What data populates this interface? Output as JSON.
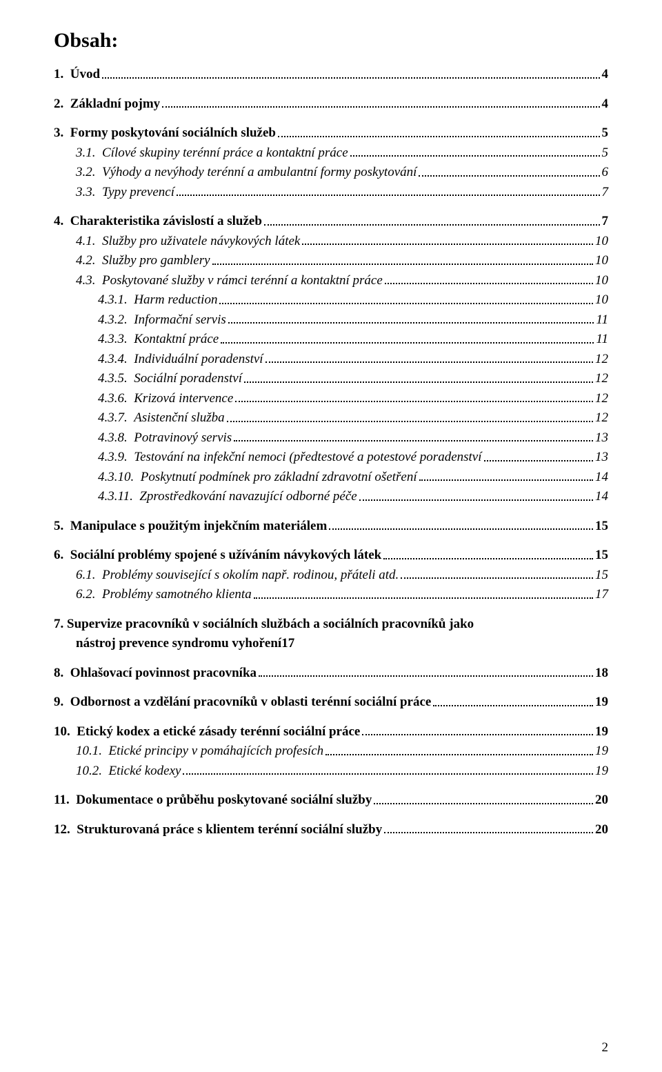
{
  "title": "Obsah:",
  "page_number": "2",
  "colors": {
    "text": "#000000",
    "background": "#ffffff"
  },
  "typography": {
    "font_family": "Times New Roman",
    "title_size_pt": 22,
    "body_size_pt": 14
  },
  "entries": [
    {
      "level": 1,
      "bold": true,
      "italic": false,
      "num": "1.",
      "label": "Úvod",
      "page": "4",
      "gap_before": false
    },
    {
      "level": 1,
      "bold": true,
      "italic": false,
      "num": "2.",
      "label": "Základní pojmy",
      "page": "4",
      "gap_before": true
    },
    {
      "level": 1,
      "bold": true,
      "italic": false,
      "num": "3.",
      "label": "Formy poskytování sociálních služeb",
      "page": "5",
      "gap_before": true
    },
    {
      "level": 2,
      "bold": false,
      "italic": true,
      "num": "3.1.",
      "label": "Cílové skupiny terénní práce a kontaktní práce",
      "page": "5",
      "gap_before": false
    },
    {
      "level": 2,
      "bold": false,
      "italic": true,
      "num": "3.2.",
      "label": "Výhody a nevýhody terénní a ambulantní formy poskytování",
      "page": "6",
      "gap_before": false
    },
    {
      "level": 2,
      "bold": false,
      "italic": true,
      "num": "3.3.",
      "label": "Typy prevencí",
      "page": "7",
      "gap_before": false
    },
    {
      "level": 1,
      "bold": true,
      "italic": false,
      "num": "4.",
      "label": "Charakteristika závislostí a služeb",
      "page": "7",
      "gap_before": true
    },
    {
      "level": 2,
      "bold": false,
      "italic": true,
      "num": "4.1.",
      "label": "Služby pro uživatele návykových látek",
      "page": "10",
      "gap_before": false
    },
    {
      "level": 2,
      "bold": false,
      "italic": true,
      "num": "4.2.",
      "label": "Služby pro gamblery",
      "page": "10",
      "gap_before": false
    },
    {
      "level": 2,
      "bold": false,
      "italic": true,
      "num": "4.3.",
      "label": "Poskytované služby v rámci terénní a kontaktní práce",
      "page": "10",
      "gap_before": false
    },
    {
      "level": 3,
      "bold": false,
      "italic": true,
      "num": "4.3.1.",
      "label": "Harm reduction",
      "page": "10",
      "gap_before": false
    },
    {
      "level": 3,
      "bold": false,
      "italic": true,
      "num": "4.3.2.",
      "label": "Informační servis",
      "page": "11",
      "gap_before": false
    },
    {
      "level": 3,
      "bold": false,
      "italic": true,
      "num": "4.3.3.",
      "label": "Kontaktní práce",
      "page": "11",
      "gap_before": false
    },
    {
      "level": 3,
      "bold": false,
      "italic": true,
      "num": "4.3.4.",
      "label": "Individuální poradenství",
      "page": "12",
      "gap_before": false
    },
    {
      "level": 3,
      "bold": false,
      "italic": true,
      "num": "4.3.5.",
      "label": "Sociální poradenství",
      "page": "12",
      "gap_before": false
    },
    {
      "level": 3,
      "bold": false,
      "italic": true,
      "num": "4.3.6.",
      "label": "Krizová intervence",
      "page": "12",
      "gap_before": false
    },
    {
      "level": 3,
      "bold": false,
      "italic": true,
      "num": "4.3.7.",
      "label": "Asistenční služba",
      "page": "12",
      "gap_before": false
    },
    {
      "level": 3,
      "bold": false,
      "italic": true,
      "num": "4.3.8.",
      "label": "Potravinový servis",
      "page": "13",
      "gap_before": false
    },
    {
      "level": 3,
      "bold": false,
      "italic": true,
      "num": "4.3.9.",
      "label": "Testování na infekční nemoci (předtestové a potestové poradenství",
      "page": "13",
      "gap_before": false
    },
    {
      "level": 3,
      "bold": false,
      "italic": true,
      "num": "4.3.10.",
      "label": "Poskytnutí podmínek pro základní zdravotní ošetření",
      "page": "14",
      "gap_before": false
    },
    {
      "level": 3,
      "bold": false,
      "italic": true,
      "num": "4.3.11.",
      "label": "Zprostředkování navazující odborné péče",
      "page": "14",
      "gap_before": false
    },
    {
      "level": 1,
      "bold": true,
      "italic": false,
      "num": "5.",
      "label": "Manipulace s použitým injekčním materiálem",
      "page": "15",
      "gap_before": true
    },
    {
      "level": 1,
      "bold": true,
      "italic": false,
      "num": "6.",
      "label": "Sociální problémy spojené s užíváním návykových látek",
      "page": "15",
      "gap_before": true
    },
    {
      "level": 2,
      "bold": false,
      "italic": true,
      "num": "6.1.",
      "label": "Problémy související s okolím např. rodinou, přáteli atd.",
      "page": "15",
      "gap_before": false
    },
    {
      "level": 2,
      "bold": false,
      "italic": true,
      "num": "6.2.",
      "label": "Problémy samotného klienta",
      "page": "17",
      "gap_before": false
    },
    {
      "level": 1,
      "bold": true,
      "italic": false,
      "num": "7.",
      "label_line1": "Supervize pracovníků v sociálních službách a sociálních pracovníků jako",
      "label_line2": "nástroj prevence syndromu vyhoření",
      "page": "17",
      "gap_before": true,
      "wrapped": true
    },
    {
      "level": 1,
      "bold": true,
      "italic": false,
      "num": "8.",
      "label": "Ohlašovací povinnost pracovníka",
      "page": "18",
      "gap_before": true
    },
    {
      "level": 1,
      "bold": true,
      "italic": false,
      "num": "9.",
      "label": "Odbornost a vzdělání pracovníků v oblasti terénní sociální práce",
      "page": "19",
      "gap_before": true
    },
    {
      "level": 1,
      "bold": true,
      "italic": false,
      "num": "10.",
      "label": "Etický kodex a etické zásady terénní sociální práce",
      "page": "19",
      "gap_before": true
    },
    {
      "level": 2,
      "bold": false,
      "italic": true,
      "num": "10.1.",
      "label": "Etické principy v pomáhajících profesích",
      "page": "19",
      "gap_before": false
    },
    {
      "level": 2,
      "bold": false,
      "italic": true,
      "num": "10.2.",
      "label": "Etické kodexy",
      "page": "19",
      "gap_before": false
    },
    {
      "level": 1,
      "bold": true,
      "italic": false,
      "num": "11.",
      "label": "Dokumentace o průběhu poskytované sociální služby",
      "page": "20",
      "gap_before": true
    },
    {
      "level": 1,
      "bold": true,
      "italic": false,
      "num": "12.",
      "label": "Strukturovaná práce s klientem terénní sociální služby",
      "page": "20",
      "gap_before": true
    }
  ]
}
